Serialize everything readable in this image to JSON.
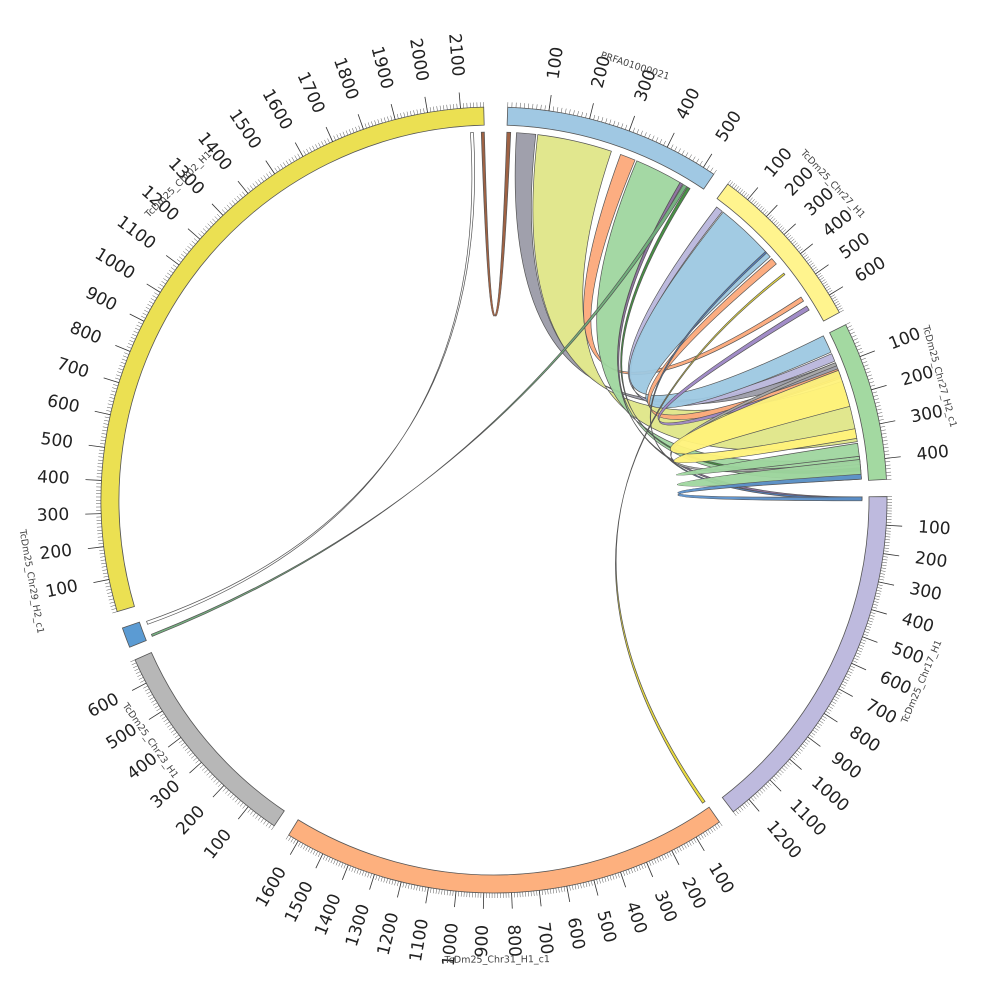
{
  "chromosomes": [
    {
      "id": "prfa",
      "name": "PRFA01000021",
      "length": 530,
      "color": "#a0c8e3",
      "ticks": [
        100,
        200,
        300,
        400,
        500
      ]
    },
    {
      "id": "chr27h1",
      "name": "TcDm25_Chr27_H1",
      "length": 680,
      "color": "#fff48e",
      "ticks": [
        100,
        200,
        300,
        400,
        500,
        600
      ]
    },
    {
      "id": "chr27h2",
      "name": "TcDm25_Chr27_H2_c1",
      "length": 460,
      "color": "#a3d9a1",
      "ticks": [
        100,
        200,
        300,
        400
      ]
    },
    {
      "id": "chr17h1",
      "name": "TcDm25_Chr17_H1",
      "length": 1270,
      "color": "#bebade",
      "ticks": [
        100,
        200,
        300,
        400,
        500,
        600,
        700,
        800,
        900,
        1000,
        1100,
        1200
      ]
    },
    {
      "id": "chr31h1",
      "name": "TcDm25_Chr31_H1_c1",
      "length": 1640,
      "color": "#fdb07e",
      "ticks": [
        100,
        200,
        300,
        400,
        500,
        600,
        700,
        800,
        900,
        1000,
        1100,
        1200,
        1300,
        1400,
        1500,
        1600
      ]
    },
    {
      "id": "chr23h1",
      "name": "TcDm25_Chr23_H1",
      "length": 680,
      "color": "#b7b7b7",
      "ticks": [
        100,
        200,
        300,
        400,
        500,
        600
      ]
    },
    {
      "id": "chr29h2",
      "name": "TcDm25_Chr29_H2_c1",
      "length": 60,
      "color": "#5b9bd3",
      "ticks": []
    },
    {
      "id": "chr02h1",
      "name": "TcDm25_Chr02_H1",
      "length": 2170,
      "color": "#ebe052",
      "ticks": [
        100,
        200,
        300,
        400,
        500,
        600,
        700,
        800,
        900,
        1000,
        1100,
        1200,
        1300,
        1400,
        1500,
        1600,
        1700,
        1800,
        1900,
        2000,
        2100
      ]
    }
  ],
  "links": [
    {
      "a": "prfa",
      "a1": 0,
      "a2": 10,
      "b": "chr02h1",
      "b1": 2160,
      "b2": 2170,
      "color": "#9a5a3a"
    },
    {
      "a": "prfa",
      "a1": 25,
      "a2": 75,
      "b": "chr27h2",
      "b1": 90,
      "b2": 115,
      "color": "#9b9ba8"
    },
    {
      "a": "prfa",
      "a1": 80,
      "a2": 275,
      "b": "chr27h2",
      "b1": 150,
      "b2": 340,
      "color": "#dfe688"
    },
    {
      "a": "prfa",
      "a1": 300,
      "a2": 340,
      "b": "chr27h1",
      "b1": 545,
      "b2": 565,
      "color": "#fca97a"
    },
    {
      "a": "prfa",
      "a1": 345,
      "a2": 470,
      "b": "chr27h2",
      "b1": 385,
      "b2": 450,
      "color": "#9fd69f"
    },
    {
      "a": "prfa",
      "a1": 470,
      "a2": 478,
      "b": "chr17h1",
      "b1": 0,
      "b2": 10,
      "color": "#8a6e9c"
    },
    {
      "a": "prfa",
      "a1": 480,
      "a2": 490,
      "b": "chr29h2",
      "b1": 5,
      "b2": 12,
      "color": "#6fae7a"
    },
    {
      "a": "prfa",
      "a1": 492,
      "a2": 500,
      "b": "chr27h2",
      "b1": 420,
      "b2": 430,
      "color": "#3d8b3a"
    },
    {
      "a": "chr27h1",
      "a1": 20,
      "a2": 50,
      "b": "chr27h2",
      "b1": 60,
      "b2": 85,
      "color": "#b9b6dc"
    },
    {
      "a": "chr27h1",
      "a1": 55,
      "a2": 330,
      "b": "chr27h2",
      "b1": 0,
      "b2": 55,
      "color": "#9dc8e2"
    },
    {
      "a": "chr27h1",
      "a1": 340,
      "a2": 370,
      "b": "chr27h2",
      "b1": 110,
      "b2": 140,
      "color": "#fca97a"
    },
    {
      "a": "chr27h1",
      "a1": 590,
      "a2": 610,
      "b": "chr27h2",
      "b1": 120,
      "b2": 135,
      "color": "#9c86c4"
    },
    {
      "a": "chr27h1",
      "a1": 420,
      "a2": 428,
      "b": "chr31h1",
      "b1": 0,
      "b2": 12,
      "color": "#e8d936"
    },
    {
      "a": "chr27h1",
      "a1": 300,
      "a2": 308,
      "b": "chr17h1",
      "b1": 2,
      "b2": 10,
      "color": "#4f7cc0"
    },
    {
      "a": "chr27h2",
      "a1": 90,
      "a2": 100,
      "b": "chr27h2",
      "b1": 400,
      "b2": 410,
      "color": "#a9a9a9"
    },
    {
      "a": "chr27h2",
      "a1": 115,
      "a2": 230,
      "b": "chr27h2",
      "b1": 300,
      "b2": 330,
      "color": "#fff27a"
    },
    {
      "a": "chr27h2",
      "a1": 345,
      "a2": 455,
      "b": "chr27h2",
      "b1": 385,
      "b2": 395,
      "color": "#9fd69f"
    },
    {
      "a": "chr27h2",
      "a1": 440,
      "a2": 455,
      "b": "chr17h1",
      "b1": 0,
      "b2": 15,
      "color": "#5b8fc9"
    },
    {
      "a": "chr02h1",
      "a1": 2125,
      "a2": 2135,
      "b": "chr29h2",
      "b1": 45,
      "b2": 55,
      "color": "#ffffff"
    }
  ]
}
